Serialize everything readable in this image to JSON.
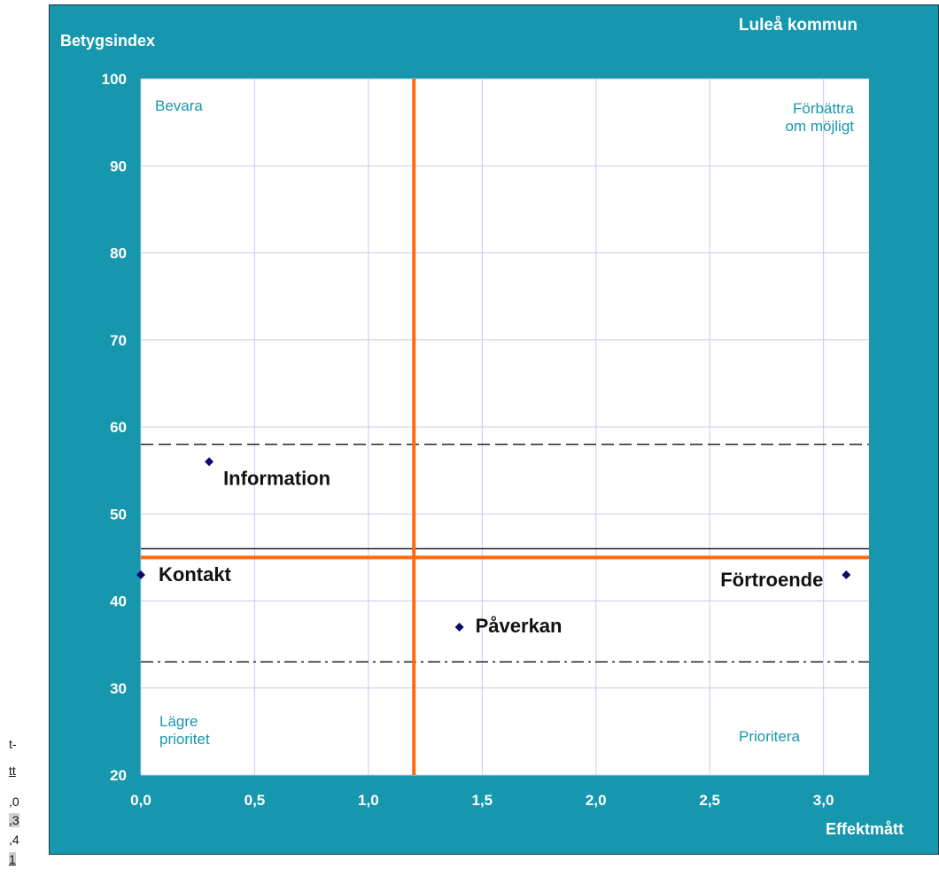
{
  "chart_data": {
    "type": "scatter",
    "title": "Luleå kommun",
    "ylabel": "Betygsindex",
    "xlabel": "Effektmått",
    "xlim": [
      0,
      3.2
    ],
    "ylim": [
      20,
      100
    ],
    "x_ticks": [
      "0,0",
      "0,5",
      "1,0",
      "1,5",
      "2,0",
      "2,5",
      "3,0"
    ],
    "x_tick_values": [
      0,
      0.5,
      1.0,
      1.5,
      2.0,
      2.5,
      3.0
    ],
    "y_ticks": [
      "20",
      "30",
      "40",
      "50",
      "60",
      "70",
      "80",
      "90",
      "100"
    ],
    "y_tick_values": [
      20,
      30,
      40,
      50,
      60,
      70,
      80,
      90,
      100
    ],
    "grid": true,
    "points": [
      {
        "label": "Information",
        "x": 0.3,
        "y": 56
      },
      {
        "label": "Kontakt",
        "x": 0.0,
        "y": 43
      },
      {
        "label": "Förtroende",
        "x": 3.1,
        "y": 43
      },
      {
        "label": "Påverkan",
        "x": 1.4,
        "y": 37
      }
    ],
    "reference_lines": {
      "vertical_orange_x": 1.2,
      "horizontal_orange_y": 45,
      "dashed_upper_y": 58,
      "solid_black_y": 46,
      "dashdot_lower_y": 33
    },
    "quadrant_labels": {
      "top_left": "Bevara",
      "top_right": [
        "Förbättra",
        "om möjligt"
      ],
      "bottom_left": [
        "Lägre",
        "prioritet"
      ],
      "bottom_right": "Prioritera"
    },
    "colors": {
      "frame": "#1797ad",
      "plot_bg": "#ffffff",
      "grid": "#c8c8f0",
      "orange": "#ff6a10",
      "marker": "#0b0b6e"
    }
  },
  "side_fragments": [
    "t-",
    "tt",
    ",0",
    ",3",
    ",4",
    "1"
  ]
}
